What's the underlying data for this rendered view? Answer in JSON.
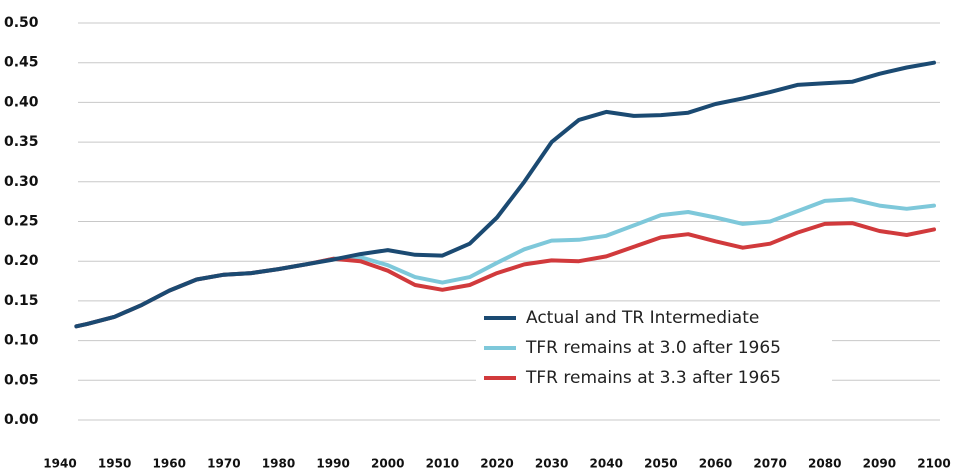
{
  "chart_data": {
    "type": "line",
    "x": [
      1943,
      1945,
      1950,
      1955,
      1960,
      1965,
      1970,
      1975,
      1980,
      1985,
      1990,
      1995,
      2000,
      2005,
      2010,
      2015,
      2020,
      2025,
      2030,
      2035,
      2040,
      2045,
      2050,
      2055,
      2060,
      2065,
      2070,
      2075,
      2080,
      2085,
      2090,
      2095,
      2100
    ],
    "series": [
      {
        "name": "Actual and TR Intermediate",
        "color": "#1b4a72",
        "values": [
          0.118,
          0.121,
          0.13,
          0.145,
          0.163,
          0.177,
          0.183,
          0.185,
          0.19,
          0.196,
          0.202,
          0.209,
          0.214,
          0.208,
          0.207,
          0.222,
          0.255,
          0.3,
          0.35,
          0.378,
          0.388,
          0.383,
          0.384,
          0.387,
          0.398,
          0.405,
          0.413,
          0.422,
          0.424,
          0.426,
          0.436,
          0.444,
          0.45
        ]
      },
      {
        "name": "TFR remains at 3.0 after 1965",
        "color": "#7ec8da",
        "values": [
          0.118,
          0.121,
          0.13,
          0.145,
          0.163,
          0.177,
          0.183,
          0.185,
          0.19,
          0.196,
          0.203,
          0.205,
          0.195,
          0.18,
          0.173,
          0.18,
          0.198,
          0.215,
          0.226,
          0.227,
          0.232,
          0.245,
          0.258,
          0.262,
          0.255,
          0.247,
          0.25,
          0.263,
          0.276,
          0.278,
          0.27,
          0.266,
          0.27
        ]
      },
      {
        "name": "TFR remains at 3.3 after 1965",
        "color": "#d13a3c",
        "values": [
          0.118,
          0.121,
          0.13,
          0.145,
          0.163,
          0.177,
          0.183,
          0.185,
          0.19,
          0.196,
          0.203,
          0.2,
          0.188,
          0.17,
          0.164,
          0.17,
          0.185,
          0.196,
          0.201,
          0.2,
          0.206,
          0.218,
          0.23,
          0.234,
          0.225,
          0.217,
          0.222,
          0.236,
          0.247,
          0.248,
          0.238,
          0.233,
          0.24
        ]
      }
    ],
    "xlim": [
      1940,
      2100
    ],
    "xticks": [
      1940,
      1950,
      1960,
      1970,
      1980,
      1990,
      2000,
      2010,
      2020,
      2030,
      2040,
      2050,
      2060,
      2070,
      2080,
      2090,
      2100
    ],
    "ylim": [
      0,
      0.5
    ],
    "yticks": [
      {
        "value": 0,
        "label": "0.00"
      },
      {
        "value": 0.05,
        "label": "0.05"
      },
      {
        "value": 0.1,
        "label": "0.10"
      },
      {
        "value": 0.15,
        "label": "0.15"
      },
      {
        "value": 0.2,
        "label": "0.20"
      },
      {
        "value": 0.25,
        "label": "0.25"
      },
      {
        "value": 0.3,
        "label": "0.30"
      },
      {
        "value": 0.35,
        "label": "0.35"
      },
      {
        "value": 0.4,
        "label": "0.40"
      },
      {
        "value": 0.45,
        "label": "0.45"
      },
      {
        "value": 0.5,
        "label": "0.50"
      }
    ],
    "grid": true
  }
}
